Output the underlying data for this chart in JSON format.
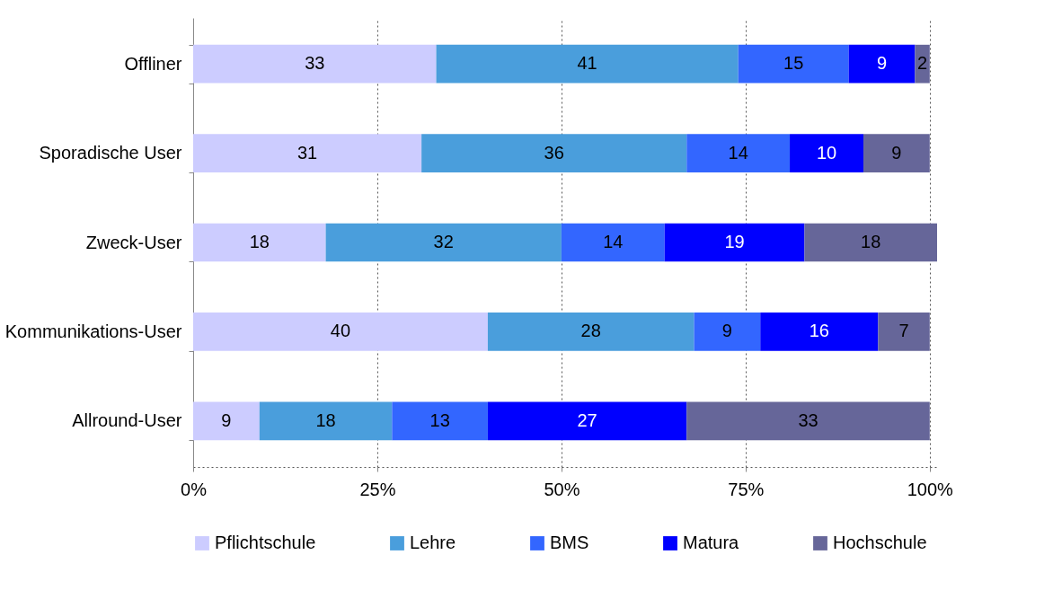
{
  "chart_data": {
    "type": "bar",
    "orientation": "horizontal",
    "stacked": true,
    "data_labels": true,
    "grid": "x",
    "legend": "bottom",
    "categories": [
      "Offliner",
      "Sporadische User",
      "Zweck-User",
      "Kommunikations-User",
      "Allround-User"
    ],
    "xlim": [
      0,
      101
    ],
    "xticks": [
      {
        "value": 0,
        "label": "0%"
      },
      {
        "value": 25,
        "label": "25%"
      },
      {
        "value": 50,
        "label": "50%"
      },
      {
        "value": 75,
        "label": "75%"
      },
      {
        "value": 100,
        "label": "100%"
      }
    ],
    "series": [
      {
        "name": "Pflichtschule",
        "color": "#ccccff",
        "values": [
          33,
          31,
          18,
          40,
          9
        ]
      },
      {
        "name": "Lehre",
        "color": "#4a9edc",
        "values": [
          41,
          36,
          32,
          28,
          18
        ]
      },
      {
        "name": "BMS",
        "color": "#3366ff",
        "values": [
          15,
          14,
          14,
          9,
          13
        ]
      },
      {
        "name": "Matura",
        "color": "#0000ff",
        "values": [
          9,
          10,
          19,
          16,
          27
        ]
      },
      {
        "name": "Hochschule",
        "color": "#666699",
        "values": [
          2,
          9,
          18,
          7,
          33
        ]
      }
    ]
  }
}
